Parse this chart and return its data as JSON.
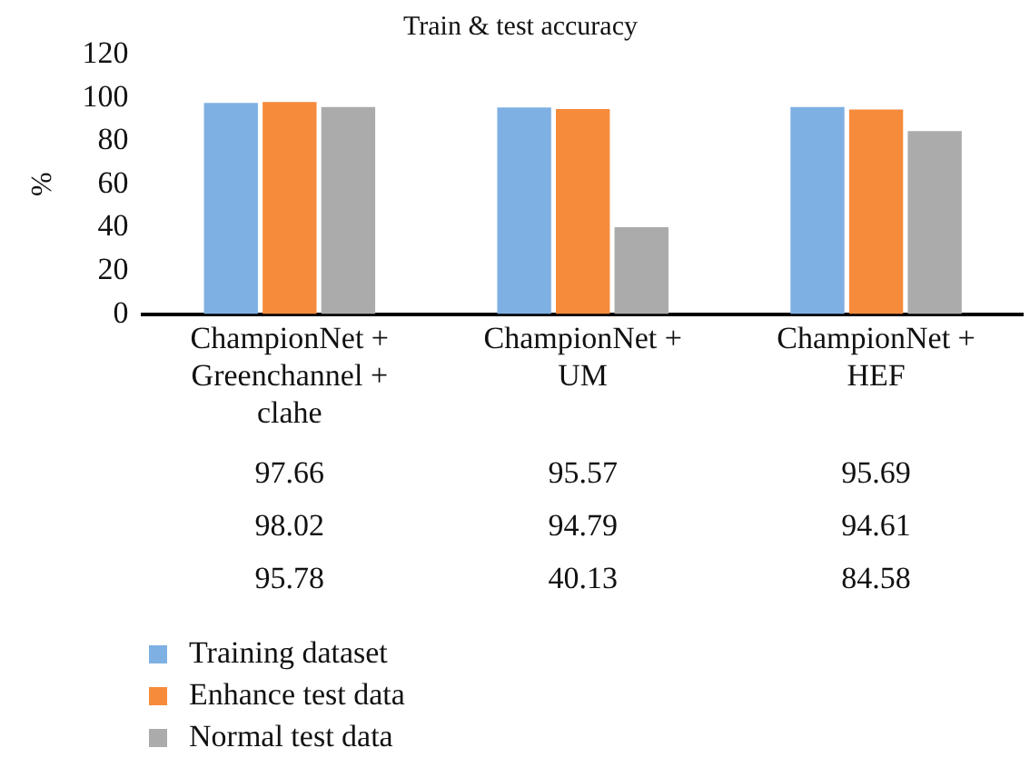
{
  "chart_data": {
    "type": "bar",
    "title": "Train & test accuracy",
    "ylabel": "%",
    "categories": [
      "ChampionNet + Greenchannel + clahe",
      "ChampionNet + UM",
      "ChampionNet + HEF"
    ],
    "series": [
      {
        "name": "Training dataset",
        "color": "#7fb0e3",
        "values": [
          97.66,
          95.57,
          95.69
        ]
      },
      {
        "name": "Enhance test data",
        "color": "#f68b3c",
        "values": [
          98.02,
          94.79,
          94.61
        ]
      },
      {
        "name": "Normal test data",
        "color": "#ababab",
        "values": [
          95.78,
          40.13,
          84.58
        ]
      }
    ],
    "ylim": [
      0,
      120
    ],
    "yticks": [
      0,
      20,
      40,
      60,
      80,
      100,
      120
    ],
    "grid": false,
    "legend": "bottom left",
    "data_labels": true
  }
}
